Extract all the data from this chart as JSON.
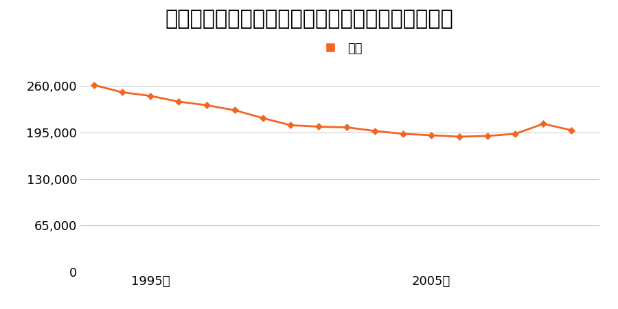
{
  "title": "埼玉県鳩ケ谷市坂下町３丁目５８６番２の地価推移",
  "legend_label": "価格",
  "years": [
    1993,
    1994,
    1995,
    1996,
    1997,
    1998,
    1999,
    2000,
    2001,
    2002,
    2003,
    2004,
    2005,
    2006,
    2007,
    2008,
    2009,
    2010
  ],
  "values": [
    261000,
    251000,
    246000,
    238000,
    233000,
    226000,
    215000,
    205000,
    203000,
    202000,
    197000,
    193000,
    191000,
    189000,
    190000,
    193000,
    207000,
    198000
  ],
  "line_color": "#f26522",
  "marker_color": "#f26522",
  "marker_face": "#f26522",
  "background_color": "#ffffff",
  "yticks": [
    0,
    65000,
    130000,
    195000,
    260000
  ],
  "ytick_labels": [
    "0",
    "65,000",
    "130,000",
    "195,000",
    "260,000"
  ],
  "xtick_years": [
    1995,
    2005
  ],
  "xtick_labels": [
    "1995年",
    "2005年"
  ],
  "ylim": [
    0,
    285000
  ],
  "xlim": [
    1992.5,
    2011
  ],
  "title_fontsize": 22,
  "legend_fontsize": 13,
  "tick_fontsize": 13,
  "grid_color": "#cccccc",
  "legend_marker_color": "#f26522",
  "legend_marker": "s"
}
